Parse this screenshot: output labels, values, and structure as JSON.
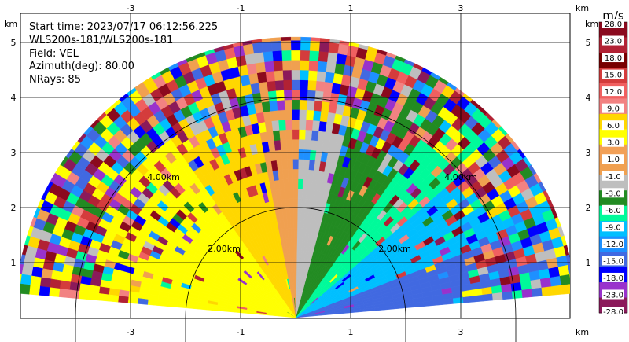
{
  "chart_data": {
    "type": "ppi",
    "info_lines": [
      "Start time: 2023/07/17 06:12:56.225",
      "WLS200s-181/WLS200s-181",
      "Field: VEL",
      "Azimuth(deg): 80.00",
      "NRays: 85"
    ],
    "x_ticks": [
      -3,
      -1,
      1,
      3
    ],
    "y_ticks": [
      1,
      2,
      3,
      4,
      5
    ],
    "xlim": [
      -5.0,
      5.0
    ],
    "ylim": [
      0,
      5.5
    ],
    "axis_unit": "km",
    "range_ring_labels": [
      "2.00km",
      "2.00km",
      "4.00km",
      "4.00km"
    ],
    "range_rings_km": [
      2,
      4
    ],
    "colorbar": {
      "unit": "m/s",
      "labels": [
        "28.0",
        "23.0",
        "18.0",
        "15.0",
        "12.0",
        "9.0",
        "6.0",
        "3.0",
        "1.0",
        "-1.0",
        "-3.0",
        "-6.0",
        "-9.0",
        "-12.0",
        "-15.0",
        "-18.0",
        "-23.0",
        "-28.0"
      ],
      "colors": [
        "#8b0a1e",
        "#b22234",
        "#780000",
        "#d43c3c",
        "#f06060",
        "#f28282",
        "#ffd700",
        "#ffff00",
        "#f2a057",
        "#f0a050",
        "#bebebe",
        "#228b22",
        "#00fa9a",
        "#00bfff",
        "#1e90ff",
        "#4169e1",
        "#0000ff",
        "#9932cc",
        "#8b1a5a"
      ]
    }
  }
}
